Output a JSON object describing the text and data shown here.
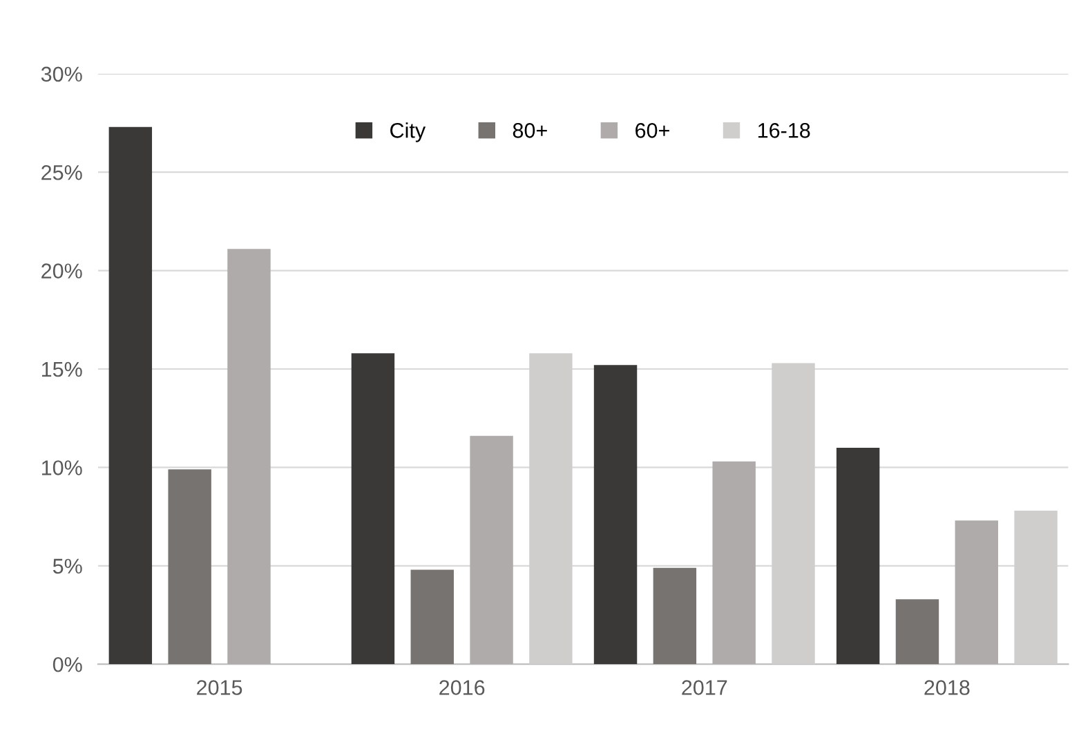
{
  "chart_data": {
    "type": "bar",
    "categories": [
      "2015",
      "2016",
      "2017",
      "2018"
    ],
    "series": [
      {
        "name": "City",
        "color": "#3a3937",
        "values": [
          27.3,
          15.8,
          15.2,
          11.0
        ]
      },
      {
        "name": "80+",
        "color": "#767371",
        "values": [
          9.9,
          4.8,
          4.9,
          3.3
        ]
      },
      {
        "name": "60+",
        "color": "#aeabaa",
        "values": [
          21.1,
          11.6,
          10.3,
          7.3
        ]
      },
      {
        "name": "16-18",
        "color": "#d0cecd",
        "values": [
          null,
          15.8,
          15.3,
          7.8
        ]
      }
    ],
    "ylim": [
      0,
      30
    ],
    "yticks": [
      {
        "value": 0,
        "label": "0%"
      },
      {
        "value": 5,
        "label": "5%"
      },
      {
        "value": 10,
        "label": "10%"
      },
      {
        "value": 15,
        "label": "15%"
      },
      {
        "value": 20,
        "label": "20%"
      },
      {
        "value": 25,
        "label": "25%"
      },
      {
        "value": 30,
        "label": "30%"
      }
    ],
    "grid": "y",
    "legend": "top"
  }
}
